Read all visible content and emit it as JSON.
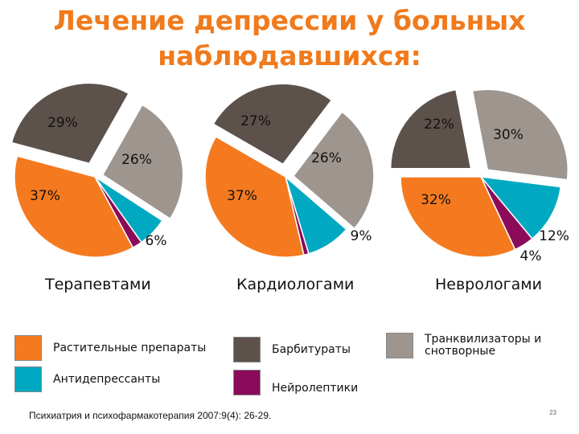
{
  "title": "Лечение депрессии у больных наблюдавшихся:",
  "chart_data": {
    "type": "pie",
    "title": "Лечение депрессии у больных наблюдавшихся:",
    "categories": [
      "Барбитураты",
      "Транквилизаторы и снотворные",
      "Антидепрессанты",
      "Нейролептики",
      "Растительные препараты"
    ],
    "colors": [
      "#5d524b",
      "#9e958f",
      "#00a9c1",
      "#8b0a5a",
      "#f57a1f"
    ],
    "charts": [
      {
        "name": "Терапевтами",
        "values": [
          29,
          26,
          6,
          2,
          37
        ],
        "labels": [
          "29%",
          "26%",
          "6%",
          "",
          "37%"
        ]
      },
      {
        "name": "Кардиологами",
        "values": [
          27,
          26,
          9,
          1,
          37
        ],
        "labels": [
          "27%",
          "26%",
          "9%",
          "",
          "37%"
        ]
      },
      {
        "name": "Неврологами",
        "values": [
          22,
          30,
          12,
          4,
          32
        ],
        "labels": [
          "22%",
          "30%",
          "12%",
          "4%",
          "32%"
        ]
      }
    ]
  },
  "legend": {
    "herbal": "Растительные препараты",
    "antidepressants": "Антидепрессанты",
    "barbiturates": "Барбитураты",
    "neuroleptics": "Нейролептики",
    "tranquilizers_line1": "Транквилизаторы и",
    "tranquilizers_line2": "снотворные"
  },
  "source": "Психиатрия и психофармакотерапия 2007:9(4): 26-29.",
  "page_number": "23"
}
